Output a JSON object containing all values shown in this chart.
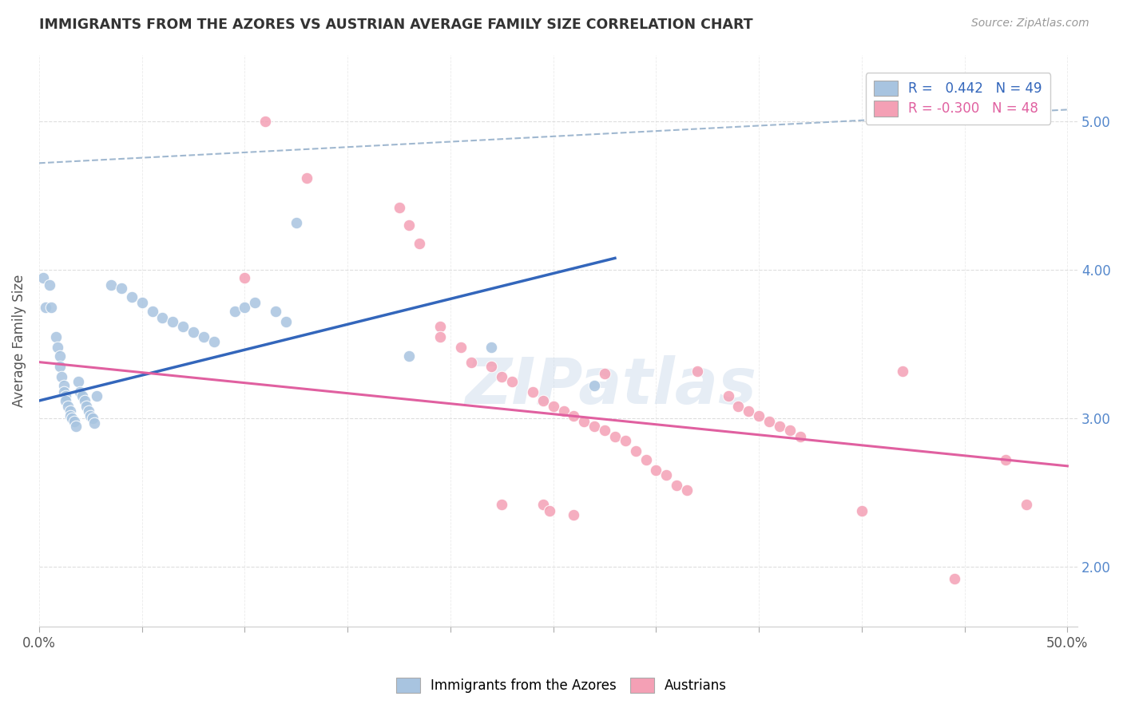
{
  "title": "IMMIGRANTS FROM THE AZORES VS AUSTRIAN AVERAGE FAMILY SIZE CORRELATION CHART",
  "source": "Source: ZipAtlas.com",
  "ylabel": "Average Family Size",
  "yticks_right": [
    2.0,
    3.0,
    4.0,
    5.0
  ],
  "legend_label_blue": "Immigrants from the Azores",
  "legend_label_pink": "Austrians",
  "watermark": "ZIPatlas",
  "blue_scatter": [
    [
      0.2,
      3.95
    ],
    [
      0.3,
      3.75
    ],
    [
      0.5,
      3.9
    ],
    [
      0.6,
      3.75
    ],
    [
      0.8,
      3.55
    ],
    [
      0.9,
      3.48
    ],
    [
      1.0,
      3.42
    ],
    [
      1.0,
      3.35
    ],
    [
      1.1,
      3.28
    ],
    [
      1.2,
      3.22
    ],
    [
      1.2,
      3.18
    ],
    [
      1.3,
      3.15
    ],
    [
      1.3,
      3.12
    ],
    [
      1.4,
      3.08
    ],
    [
      1.5,
      3.05
    ],
    [
      1.5,
      3.02
    ],
    [
      1.6,
      3.0
    ],
    [
      1.7,
      2.98
    ],
    [
      1.8,
      2.95
    ],
    [
      1.9,
      3.25
    ],
    [
      2.0,
      3.18
    ],
    [
      2.1,
      3.15
    ],
    [
      2.2,
      3.12
    ],
    [
      2.3,
      3.08
    ],
    [
      2.4,
      3.05
    ],
    [
      2.5,
      3.02
    ],
    [
      2.6,
      3.0
    ],
    [
      2.7,
      2.97
    ],
    [
      2.8,
      3.15
    ],
    [
      3.5,
      3.9
    ],
    [
      4.0,
      3.88
    ],
    [
      4.5,
      3.82
    ],
    [
      5.0,
      3.78
    ],
    [
      5.5,
      3.72
    ],
    [
      6.0,
      3.68
    ],
    [
      6.5,
      3.65
    ],
    [
      7.0,
      3.62
    ],
    [
      7.5,
      3.58
    ],
    [
      8.0,
      3.55
    ],
    [
      8.5,
      3.52
    ],
    [
      9.5,
      3.72
    ],
    [
      10.0,
      3.75
    ],
    [
      10.5,
      3.78
    ],
    [
      11.5,
      3.72
    ],
    [
      12.0,
      3.65
    ],
    [
      12.5,
      4.32
    ],
    [
      18.0,
      3.42
    ],
    [
      22.0,
      3.48
    ],
    [
      27.0,
      3.22
    ]
  ],
  "pink_scatter": [
    [
      11.0,
      5.0
    ],
    [
      13.0,
      4.62
    ],
    [
      17.5,
      4.42
    ],
    [
      18.0,
      4.3
    ],
    [
      18.5,
      4.18
    ],
    [
      19.5,
      3.62
    ],
    [
      19.5,
      3.55
    ],
    [
      20.5,
      3.48
    ],
    [
      21.0,
      3.38
    ],
    [
      22.0,
      3.35
    ],
    [
      22.5,
      3.28
    ],
    [
      23.0,
      3.25
    ],
    [
      24.0,
      3.18
    ],
    [
      24.5,
      3.12
    ],
    [
      25.0,
      3.08
    ],
    [
      25.5,
      3.05
    ],
    [
      26.0,
      3.02
    ],
    [
      26.5,
      2.98
    ],
    [
      27.0,
      2.95
    ],
    [
      27.5,
      2.92
    ],
    [
      28.0,
      2.88
    ],
    [
      28.5,
      2.85
    ],
    [
      29.0,
      2.78
    ],
    [
      29.5,
      2.72
    ],
    [
      30.0,
      2.65
    ],
    [
      30.5,
      2.62
    ],
    [
      31.0,
      2.55
    ],
    [
      31.5,
      2.52
    ],
    [
      32.0,
      3.32
    ],
    [
      33.5,
      3.15
    ],
    [
      34.0,
      3.08
    ],
    [
      34.5,
      3.05
    ],
    [
      35.0,
      3.02
    ],
    [
      35.5,
      2.98
    ],
    [
      36.0,
      2.95
    ],
    [
      36.5,
      2.92
    ],
    [
      37.0,
      2.88
    ],
    [
      42.0,
      3.32
    ],
    [
      44.5,
      1.92
    ],
    [
      10.0,
      3.95
    ],
    [
      22.5,
      2.42
    ],
    [
      24.5,
      2.42
    ],
    [
      24.8,
      2.38
    ],
    [
      26.0,
      2.35
    ],
    [
      27.5,
      3.3
    ],
    [
      47.0,
      2.72
    ],
    [
      40.0,
      2.38
    ],
    [
      48.0,
      2.42
    ]
  ],
  "blue_line_x": [
    0.0,
    28.0
  ],
  "blue_line_y": [
    3.12,
    4.08
  ],
  "pink_line_x": [
    0.0,
    50.0
  ],
  "pink_line_y": [
    3.38,
    2.68
  ],
  "dashed_line_x": [
    0.0,
    50.0
  ],
  "dashed_line_y": [
    4.72,
    5.08
  ],
  "bg_color": "#ffffff",
  "blue_scatter_color": "#a8c4e0",
  "pink_scatter_color": "#f4a0b5",
  "blue_line_color": "#3366bb",
  "pink_line_color": "#e060a0",
  "dashed_line_color": "#a0b8d0",
  "grid_color": "#dedede",
  "title_color": "#333333",
  "right_axis_color": "#5588cc",
  "xlim": [
    0.0,
    50.5
  ],
  "ylim": [
    1.6,
    5.45
  ],
  "xtick_positions": [
    0,
    5,
    10,
    15,
    20,
    25,
    30,
    35,
    40,
    45,
    50
  ]
}
